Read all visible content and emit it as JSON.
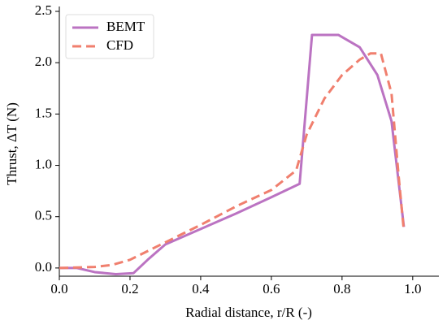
{
  "chart_data": {
    "type": "line",
    "x_label": "Radial distance, r/R (-)",
    "y_label": "Thrust, ΔT (N)",
    "xlim": [
      0,
      1.074
    ],
    "ylim": [
      -0.08,
      2.5
    ],
    "xticks": [
      {
        "value": 0,
        "label": "0.0"
      },
      0.2,
      0.4,
      0.6,
      0.8,
      {
        "value": 1,
        "label": "1.0"
      }
    ],
    "yticks": [
      {
        "value": 0,
        "label": "0.0"
      },
      0.5,
      {
        "value": 1,
        "label": "1.0"
      },
      1.5,
      {
        "value": 2,
        "label": "2.0"
      },
      2.5
    ],
    "grid": false,
    "legend": "upper left",
    "series": [
      {
        "name": "BEMT",
        "color": "#bb73c2",
        "dash": "solid",
        "x": [
          0,
          0.05,
          0.1,
          0.16,
          0.21,
          0.25,
          0.3,
          0.4,
          0.5,
          0.6,
          0.68,
          0.715,
          0.79,
          0.85,
          0.9,
          0.94,
          0.975
        ],
        "values": [
          0,
          0,
          -0.04,
          -0.06,
          -0.05,
          0.08,
          0.23,
          0.38,
          0.53,
          0.69,
          0.82,
          2.27,
          2.27,
          2.15,
          1.88,
          1.43,
          0.4
        ]
      },
      {
        "name": "CFD",
        "color": "#f07f6e",
        "dash": "dashed",
        "x": [
          0,
          0.1,
          0.15,
          0.2,
          0.3,
          0.4,
          0.5,
          0.6,
          0.67,
          0.7,
          0.75,
          0.8,
          0.85,
          0.88,
          0.91,
          0.94,
          0.96,
          0.975
        ],
        "values": [
          0,
          0.01,
          0.03,
          0.08,
          0.25,
          0.42,
          0.6,
          0.76,
          0.95,
          1.3,
          1.65,
          1.88,
          2.03,
          2.09,
          2.09,
          1.7,
          0.9,
          0.36
        ]
      }
    ]
  }
}
